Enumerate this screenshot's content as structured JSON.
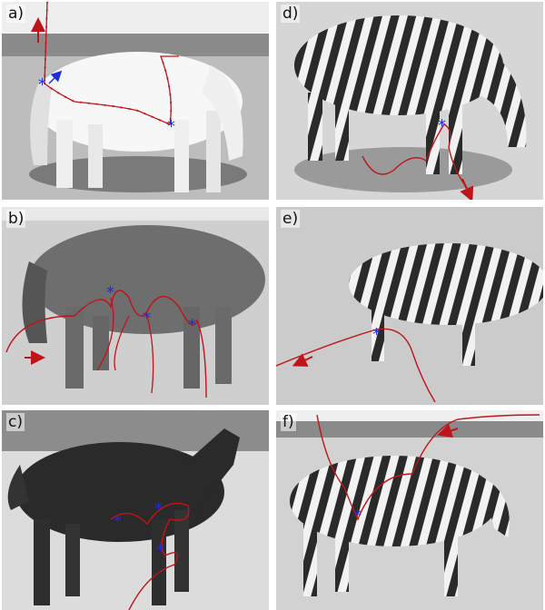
{
  "panels": [
    {
      "label": "a)",
      "subject": "horse",
      "coat": "white"
    },
    {
      "label": "b)",
      "subject": "horse",
      "coat": "brown"
    },
    {
      "label": "c)",
      "subject": "horse",
      "coat": "black"
    },
    {
      "label": "d)",
      "subject": "zebra"
    },
    {
      "label": "e)",
      "subject": "zebra"
    },
    {
      "label": "f)",
      "subject": "zebra"
    }
  ],
  "colors": {
    "trajectory": "#c0141a",
    "marker": "#1a2ee0"
  }
}
